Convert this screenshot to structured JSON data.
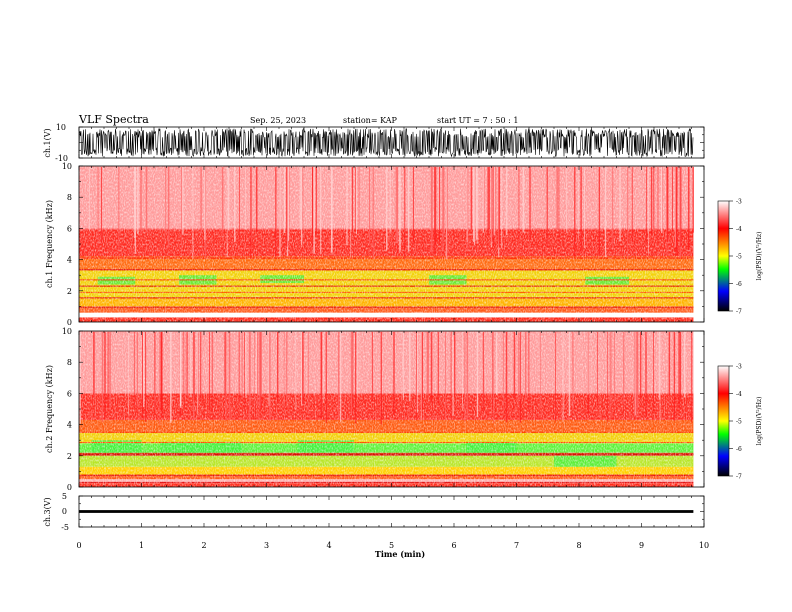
{
  "header": {
    "title": "VLF Spectra",
    "date": "Sep. 25, 2023",
    "station": "station= KAP",
    "start": "start  UT  =   7 : 50 : 1"
  },
  "colorbar": {
    "label": "log(PSD)(V²/Hz)",
    "ticks": [
      "-3",
      "-4",
      "-5",
      "-6",
      "-7"
    ],
    "range": [
      -7,
      -3
    ],
    "stops": [
      "#ffffff",
      "#ff0000",
      "#ffff00",
      "#00ff00",
      "#0000ff",
      "#000000"
    ]
  },
  "chart_data": [
    {
      "type": "line",
      "name": "ch1-waveform",
      "ylabel": "ch.1(V)",
      "ylim": [
        -10,
        10
      ],
      "ytick_labels": [
        "10",
        "-10"
      ],
      "xlim": [
        0,
        10
      ],
      "trace_until_min": 9.83,
      "envelope": [
        -9,
        9
      ],
      "color": "#000000"
    },
    {
      "type": "heatmap",
      "name": "ch1-spectrogram",
      "ylabel": "ch.1 Frequency (kHz)",
      "ylim": [
        0,
        10
      ],
      "ytick_labels": [
        "0",
        "2",
        "4",
        "6",
        "8",
        "10"
      ],
      "xlim": [
        0,
        10
      ],
      "data_until_min": 9.83,
      "bands_khz": [
        {
          "from": 0,
          "to": 0.3,
          "color": "#ff2a1a"
        },
        {
          "from": 0.3,
          "to": 0.6,
          "color": "#ffffff"
        },
        {
          "from": 0.6,
          "to": 1.0,
          "color": "#ff5a18"
        },
        {
          "from": 1.0,
          "to": 1.6,
          "color": "#ffb400"
        },
        {
          "from": 1.6,
          "to": 3.3,
          "color": "#f2d20a"
        },
        {
          "from": 3.3,
          "to": 4.2,
          "color": "#ff6a10"
        },
        {
          "from": 4.2,
          "to": 6.0,
          "color": "#ff2a20"
        },
        {
          "from": 6.0,
          "to": 10.0,
          "color": "#ff9a9a"
        }
      ],
      "lines_khz": [
        {
          "at": 0.95,
          "color": "#e00000"
        },
        {
          "at": 1.55,
          "color": "#e00000"
        },
        {
          "at": 1.9,
          "color": "#ff5000"
        },
        {
          "at": 2.3,
          "color": "#e00000"
        },
        {
          "at": 2.7,
          "color": "#ff3000"
        },
        {
          "at": 3.35,
          "color": "#e00000"
        },
        {
          "at": 4.1,
          "color": "#ff0000"
        },
        {
          "at": 5.95,
          "color": "#ff6060"
        }
      ],
      "green_patches": [
        {
          "x0": 0.3,
          "x1": 0.9,
          "f0": 2.4,
          "f1": 2.9
        },
        {
          "x0": 1.6,
          "x1": 2.2,
          "f0": 2.4,
          "f1": 3.0
        },
        {
          "x0": 2.9,
          "x1": 3.6,
          "f0": 2.5,
          "f1": 3.0
        },
        {
          "x0": 5.6,
          "x1": 6.2,
          "f0": 2.4,
          "f1": 3.0
        },
        {
          "x0": 8.1,
          "x1": 8.8,
          "f0": 2.4,
          "f1": 2.9
        }
      ]
    },
    {
      "type": "heatmap",
      "name": "ch2-spectrogram",
      "ylabel": "ch.2 Frequency (kHz)",
      "ylim": [
        0,
        10
      ],
      "ytick_labels": [
        "0",
        "2",
        "4",
        "6",
        "8",
        "10"
      ],
      "xlim": [
        0,
        10
      ],
      "data_until_min": 9.83,
      "bands_khz": [
        {
          "from": 0,
          "to": 0.25,
          "color": "#ff2a1a"
        },
        {
          "from": 0.25,
          "to": 0.5,
          "color": "#ffb0b0"
        },
        {
          "from": 0.5,
          "to": 0.8,
          "color": "#ff5a18"
        },
        {
          "from": 0.8,
          "to": 1.3,
          "color": "#ffd000"
        },
        {
          "from": 1.3,
          "to": 2.0,
          "color": "#b8e628"
        },
        {
          "from": 2.0,
          "to": 2.2,
          "color": "#e03000"
        },
        {
          "from": 2.2,
          "to": 2.8,
          "color": "#5ef23a"
        },
        {
          "from": 2.8,
          "to": 3.5,
          "color": "#f2d00a"
        },
        {
          "from": 3.5,
          "to": 4.3,
          "color": "#ff5a10"
        },
        {
          "from": 4.3,
          "to": 6.0,
          "color": "#ff2a20"
        },
        {
          "from": 6.0,
          "to": 10.0,
          "color": "#ff9a9a"
        }
      ],
      "lines_khz": [
        {
          "at": 0.3,
          "color": "#e00000"
        },
        {
          "at": 0.75,
          "color": "#e00000"
        },
        {
          "at": 2.1,
          "color": "#d00000"
        },
        {
          "at": 2.85,
          "color": "#ff5000"
        },
        {
          "at": 3.5,
          "color": "#ff3000"
        }
      ],
      "green_patches": [
        {
          "x0": 0.2,
          "x1": 1.0,
          "f0": 2.2,
          "f1": 3.0
        },
        {
          "x0": 1.3,
          "x1": 2.6,
          "f0": 2.2,
          "f1": 2.9
        },
        {
          "x0": 3.5,
          "x1": 4.4,
          "f0": 2.2,
          "f1": 3.0
        },
        {
          "x0": 6.2,
          "x1": 7.0,
          "f0": 2.2,
          "f1": 2.9
        },
        {
          "x0": 7.6,
          "x1": 8.6,
          "f0": 1.3,
          "f1": 2.0
        }
      ]
    },
    {
      "type": "line",
      "name": "ch3-waveform",
      "ylabel": "ch.3(V)",
      "ylim": [
        -5,
        5
      ],
      "ytick_labels": [
        "5",
        "0",
        "-5"
      ],
      "xlim": [
        0,
        10
      ],
      "trace_until_min": 9.83,
      "band": [
        -0.45,
        0.45
      ],
      "color": "#000000"
    }
  ],
  "xaxis": {
    "xlabel": "Time  (min)",
    "xlim": [
      0,
      10
    ],
    "tick_labels": [
      "0",
      "1",
      "2",
      "3",
      "4",
      "5",
      "6",
      "7",
      "8",
      "9",
      "10"
    ]
  }
}
